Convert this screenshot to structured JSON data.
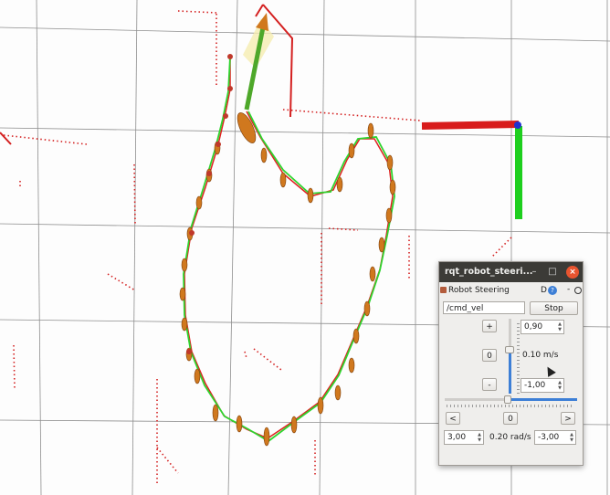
{
  "window": {
    "title": "rqt_robot_steeri...",
    "min_glyph": "–",
    "max_glyph": "□",
    "close_glyph": "×"
  },
  "plugin": {
    "title": "Robot Steering",
    "d_label": "D",
    "help_glyph": "?",
    "min_glyph": "-"
  },
  "topic": {
    "value": "/cmd_vel"
  },
  "buttons": {
    "stop": "Stop",
    "plus": "+",
    "zero_linear": "0",
    "minus": "-",
    "left": "<",
    "zero_angular": "0",
    "right": ">"
  },
  "linear": {
    "max": "0,90",
    "min": "-1,00",
    "current": "0.10 m/s",
    "level": 0.55
  },
  "angular": {
    "left_limit": "3,00",
    "right_limit": "-3,00",
    "current": "0.20 rad/s",
    "level": 0.47
  },
  "colors": {
    "path_green": "#2fd42f",
    "path_red": "#e02020",
    "ellipse": "#d0781e",
    "axis_red": "#d81c1c",
    "axis_green": "#1ecf1e",
    "slider_blue": "#3d7fd6",
    "titlebar": "#3c3b37"
  }
}
